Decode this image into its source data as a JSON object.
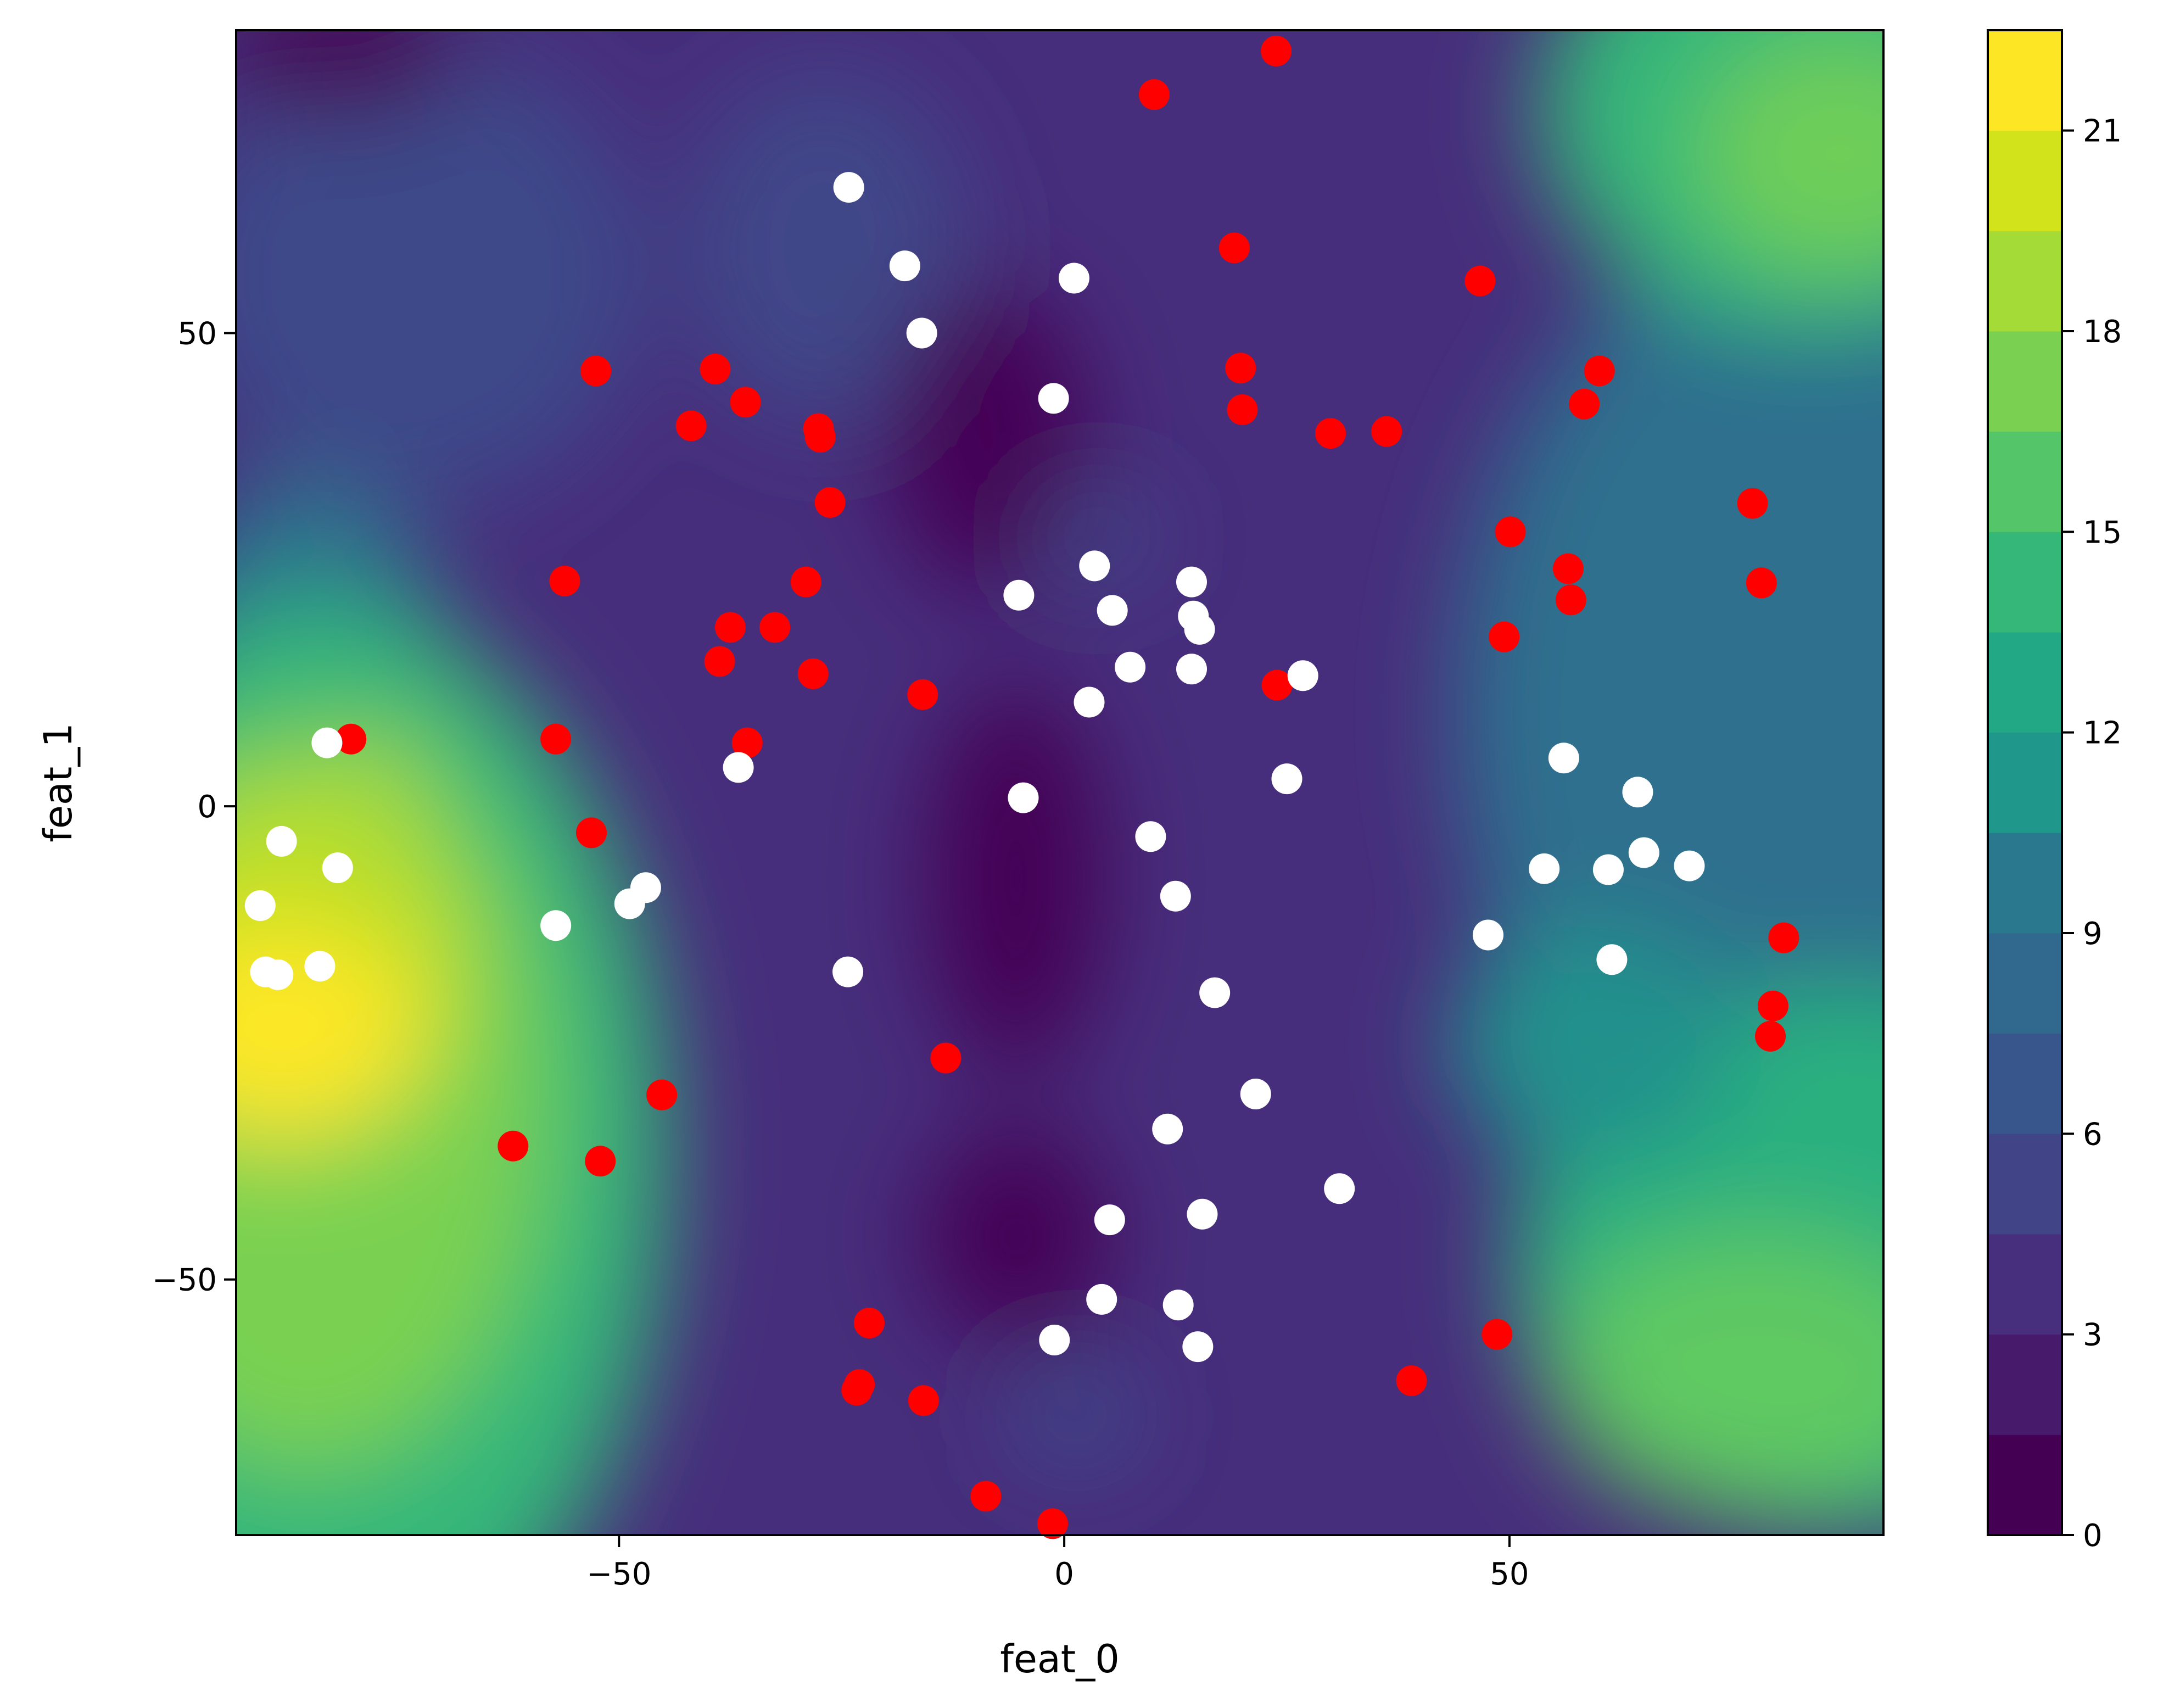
{
  "chart_data": {
    "type": "scatter",
    "background": "contour",
    "xlabel": "feat_0",
    "ylabel": "feat_1",
    "xlim": [
      -93,
      92
    ],
    "ylim": [
      -77,
      82
    ],
    "xticks": [
      -50,
      0,
      50
    ],
    "yticks": [
      -50,
      0,
      50
    ],
    "xtick_labels": [
      "−50",
      "0",
      "50"
    ],
    "ytick_labels": [
      "−50",
      "0",
      "50"
    ],
    "colorbar": {
      "colormap": "viridis",
      "min": 0,
      "max": 22.5,
      "levels": 15,
      "ticks": [
        0,
        3,
        6,
        9,
        12,
        15,
        18,
        21
      ],
      "tick_labels": [
        "0",
        "3",
        "6",
        "9",
        "12",
        "15",
        "18",
        "21"
      ]
    },
    "series": [
      {
        "color": "#ff0000",
        "points": [
          [
            23.8,
            79.8
          ],
          [
            10.1,
            75.2
          ],
          [
            19.1,
            59.0
          ],
          [
            46.7,
            55.5
          ],
          [
            19.8,
            46.3
          ],
          [
            20.0,
            41.9
          ],
          [
            29.9,
            39.4
          ],
          [
            36.2,
            39.6
          ],
          [
            60.1,
            46.0
          ],
          [
            58.4,
            42.5
          ],
          [
            -52.6,
            46.0
          ],
          [
            -39.2,
            46.2
          ],
          [
            -35.8,
            42.7
          ],
          [
            -41.9,
            40.2
          ],
          [
            -27.6,
            39.9
          ],
          [
            -27.4,
            39.0
          ],
          [
            -26.3,
            32.1
          ],
          [
            -56.1,
            23.8
          ],
          [
            -29.0,
            23.7
          ],
          [
            -37.5,
            18.9
          ],
          [
            -32.5,
            18.9
          ],
          [
            -38.7,
            15.3
          ],
          [
            -28.2,
            14.0
          ],
          [
            -15.9,
            11.8
          ],
          [
            23.9,
            12.8
          ],
          [
            -35.6,
            6.7
          ],
          [
            -57.1,
            7.1
          ],
          [
            -80.1,
            7.1
          ],
          [
            -53.1,
            -2.8
          ],
          [
            77.3,
            32.0
          ],
          [
            50.1,
            29.0
          ],
          [
            56.6,
            25.1
          ],
          [
            56.9,
            21.8
          ],
          [
            78.3,
            23.6
          ],
          [
            49.4,
            17.9
          ],
          [
            80.8,
            -13.9
          ],
          [
            79.6,
            -21.1
          ],
          [
            79.3,
            -24.3
          ],
          [
            -45.2,
            -30.5
          ],
          [
            -61.9,
            -35.9
          ],
          [
            -52.1,
            -37.5
          ],
          [
            -13.3,
            -26.6
          ],
          [
            -21.9,
            -54.6
          ],
          [
            -23.3,
            -61.7
          ],
          [
            -23.0,
            -61.1
          ],
          [
            -15.8,
            -62.8
          ],
          [
            48.6,
            -55.8
          ],
          [
            39.0,
            -60.7
          ],
          [
            -8.8,
            -72.9
          ],
          [
            -1.3,
            -75.8
          ]
        ]
      },
      {
        "color": "#ffffff",
        "points": [
          [
            -24.2,
            65.4
          ],
          [
            -17.9,
            57.1
          ],
          [
            -16.0,
            50.0
          ],
          [
            1.1,
            55.8
          ],
          [
            -1.2,
            43.1
          ],
          [
            3.4,
            25.4
          ],
          [
            5.4,
            20.7
          ],
          [
            -5.1,
            22.3
          ],
          [
            14.3,
            23.7
          ],
          [
            14.5,
            20.1
          ],
          [
            15.2,
            18.7
          ],
          [
            7.4,
            14.7
          ],
          [
            14.3,
            14.5
          ],
          [
            26.8,
            13.8
          ],
          [
            2.8,
            11.0
          ],
          [
            -36.6,
            4.1
          ],
          [
            -4.6,
            0.9
          ],
          [
            25.0,
            2.9
          ],
          [
            9.7,
            -3.2
          ],
          [
            12.5,
            -9.5
          ],
          [
            16.9,
            -19.7
          ],
          [
            21.5,
            -30.4
          ],
          [
            11.6,
            -34.1
          ],
          [
            30.9,
            -40.4
          ],
          [
            5.1,
            -43.7
          ],
          [
            15.5,
            -43.1
          ],
          [
            4.2,
            -52.1
          ],
          [
            12.8,
            -52.7
          ],
          [
            -1.1,
            -56.4
          ],
          [
            15.0,
            -57.1
          ],
          [
            -24.3,
            -17.5
          ],
          [
            -57.1,
            -12.6
          ],
          [
            -48.8,
            -10.3
          ],
          [
            -47.0,
            -8.6
          ],
          [
            -82.8,
            6.7
          ],
          [
            -87.9,
            -3.7
          ],
          [
            -81.6,
            -6.5
          ],
          [
            -90.3,
            -10.5
          ],
          [
            -89.7,
            -17.5
          ],
          [
            -88.3,
            -17.8
          ],
          [
            -83.6,
            -16.9
          ],
          [
            56.1,
            5.1
          ],
          [
            64.4,
            1.5
          ],
          [
            65.1,
            -4.9
          ],
          [
            70.2,
            -6.3
          ],
          [
            53.9,
            -6.6
          ],
          [
            61.1,
            -6.7
          ],
          [
            47.6,
            -13.6
          ],
          [
            61.5,
            -16.2
          ]
        ]
      }
    ]
  }
}
